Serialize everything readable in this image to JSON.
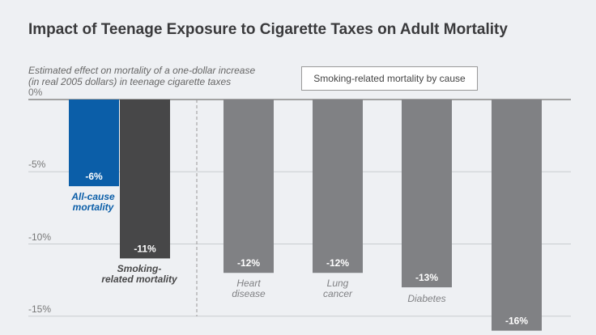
{
  "chart_data": {
    "type": "bar",
    "title": "Impact of Teenage Exposure to Cigarette Taxes on Adult Mortality",
    "subtitle": "Estimated effect on mortality of a one-dollar increase\n(in real 2005 dollars) in teenage cigarette taxes",
    "legend_box": "Smoking-related mortality by cause",
    "categories": [
      "All-cause\nmortality",
      "Smoking-\nrelated mortality",
      "Heart\ndisease",
      "Lung\ncancer",
      "Diabetes",
      null
    ],
    "values": [
      -6,
      -11,
      -12,
      -12,
      -13,
      -16
    ],
    "value_labels": [
      "-6%",
      "-11%",
      "-12%",
      "-12%",
      "-13%",
      "-16%"
    ],
    "colors": [
      "#0b5ea8",
      "#474748",
      "#808184",
      "#808184",
      "#808184",
      "#808184"
    ],
    "label_colors": [
      "#0b5ea8",
      "#474748",
      "#808184",
      "#808184",
      "#808184",
      "#808184"
    ],
    "ylim": [
      -16.3,
      0
    ],
    "yticks": [
      {
        "value": 0,
        "label": "0%"
      },
      {
        "value": -5,
        "label": "-5%"
      },
      {
        "value": -10,
        "label": "-10%"
      },
      {
        "value": -15,
        "label": "-15%"
      }
    ],
    "grid": true
  }
}
